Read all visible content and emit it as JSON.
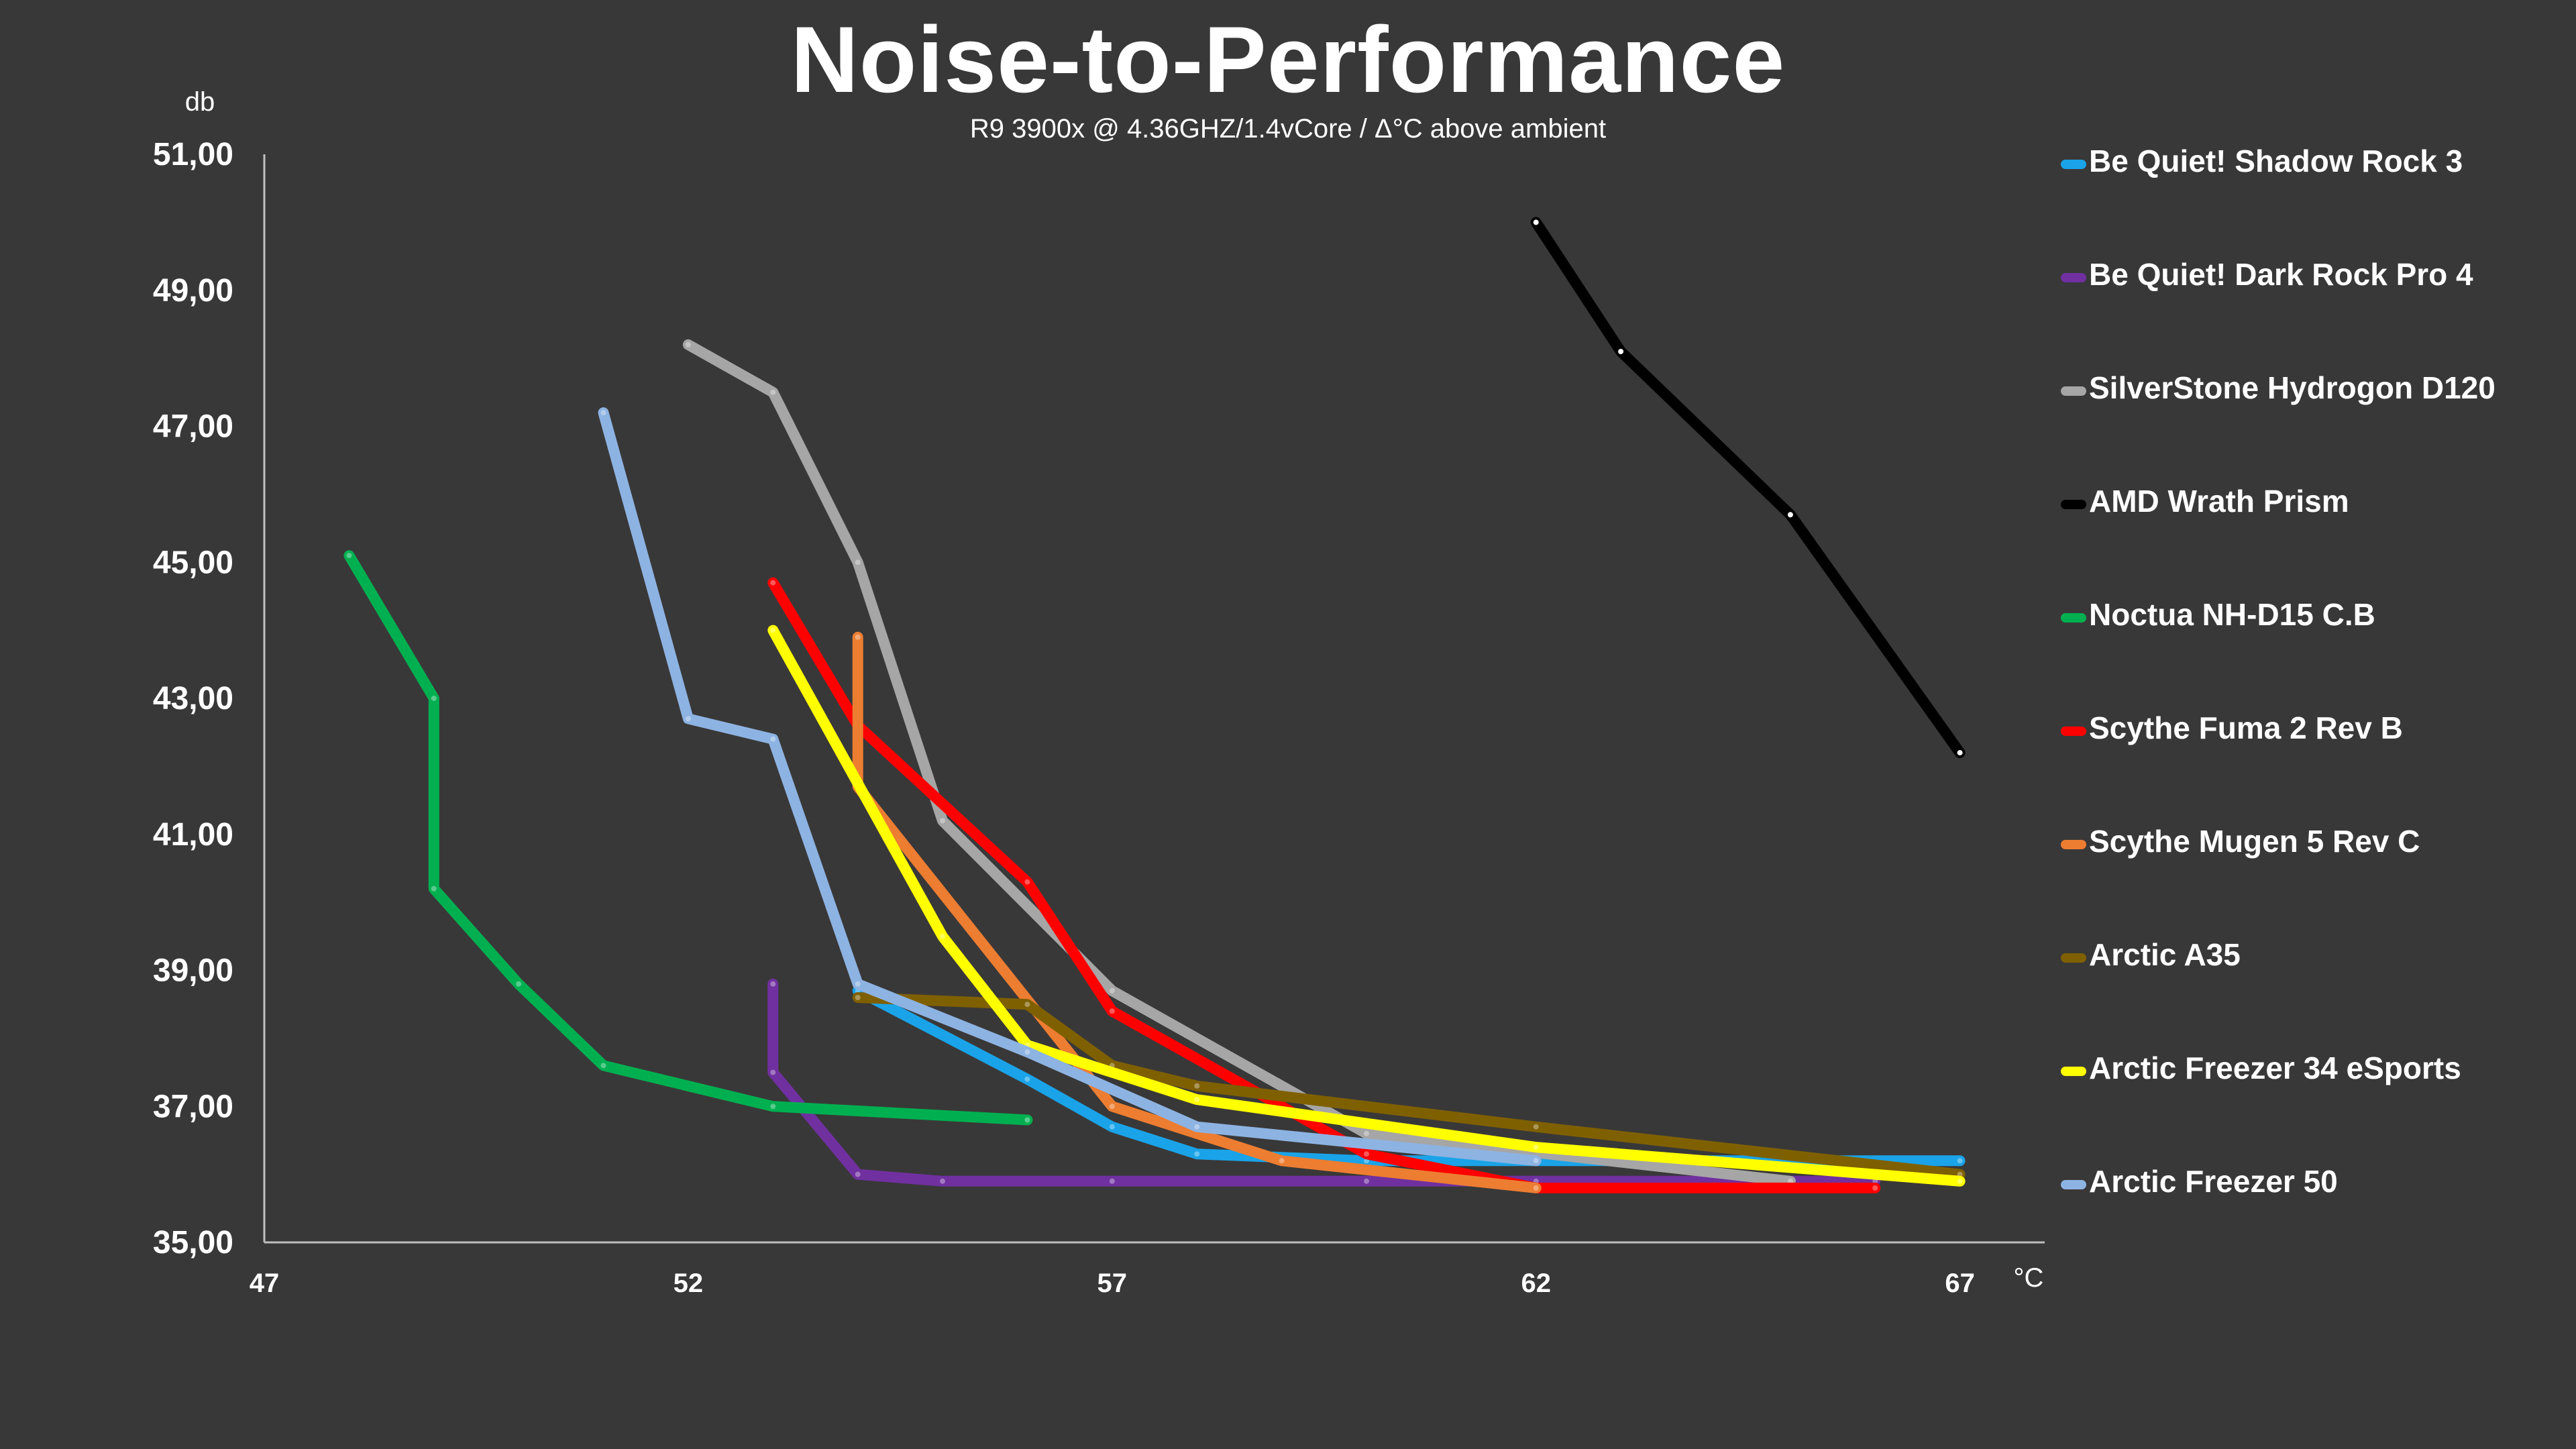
{
  "chart_data": {
    "type": "line",
    "title": "Noise-to-Performance",
    "subtitle": "R9 3900x @ 4.36GHZ/1.4vCore   /  Δ°C above ambient",
    "xlabel": "°C",
    "ylabel": "db",
    "xlim": [
      47,
      68
    ],
    "ylim": [
      35,
      51
    ],
    "xticks": [
      "47",
      "52",
      "57",
      "62",
      "67"
    ],
    "xtick_values": [
      47,
      52,
      57,
      62,
      67
    ],
    "yticks": [
      "35,00",
      "37,00",
      "39,00",
      "41,00",
      "43,00",
      "45,00",
      "47,00",
      "49,00",
      "51,00"
    ],
    "ytick_values": [
      35,
      37,
      39,
      41,
      43,
      45,
      47,
      49,
      51
    ],
    "grid": false,
    "legend_position": "right",
    "series": [
      {
        "name": "Be Quiet! Shadow Rock 3",
        "color": "#1aa3e8",
        "x": [
          54,
          56,
          57,
          58,
          60,
          62,
          67
        ],
        "y": [
          38.7,
          37.4,
          36.7,
          36.3,
          36.2,
          36.2,
          36.2
        ]
      },
      {
        "name": "Be Quiet! Dark Rock Pro 4",
        "color": "#7030a0",
        "x": [
          53,
          53,
          54,
          55,
          57,
          60,
          62,
          66
        ],
        "y": [
          38.8,
          37.5,
          36.0,
          35.9,
          35.9,
          35.9,
          35.9,
          35.9
        ]
      },
      {
        "name": "SilverStone Hydrogon D120",
        "color": "#a6a6a6",
        "x": [
          52,
          53,
          54,
          55,
          57,
          60,
          65
        ],
        "y": [
          48.2,
          47.5,
          45.0,
          41.2,
          38.7,
          36.6,
          35.9
        ]
      },
      {
        "name": "AMD Wrath Prism",
        "color": "#000000",
        "x": [
          62,
          63,
          65,
          67
        ],
        "y": [
          50.0,
          48.1,
          45.7,
          42.2
        ]
      },
      {
        "name": "Noctua NH-D15 C.B",
        "color": "#00b050",
        "x": [
          48,
          49,
          49,
          50,
          51,
          53,
          56
        ],
        "y": [
          45.1,
          43.0,
          40.2,
          38.8,
          37.6,
          37.0,
          36.8
        ]
      },
      {
        "name": "Scythe Fuma 2 Rev B",
        "color": "#ff0000",
        "x": [
          53,
          54,
          56,
          57,
          60,
          62,
          66
        ],
        "y": [
          44.7,
          42.6,
          40.3,
          38.4,
          36.3,
          35.8,
          35.8
        ]
      },
      {
        "name": "Scythe Mugen 5 Rev C",
        "color": "#ed7d31",
        "x": [
          54,
          54,
          57,
          59,
          62
        ],
        "y": [
          43.9,
          41.7,
          37.0,
          36.2,
          35.8
        ]
      },
      {
        "name": "Arctic A35",
        "color": "#7f6000",
        "x": [
          54,
          56,
          57,
          58,
          62,
          67
        ],
        "y": [
          38.6,
          38.5,
          37.6,
          37.3,
          36.7,
          36.0
        ]
      },
      {
        "name": "Arctic Freezer 34 eSports",
        "color": "#ffff00",
        "x": [
          53,
          55,
          56,
          58,
          62,
          67
        ],
        "y": [
          44.0,
          39.5,
          37.9,
          37.1,
          36.4,
          35.9
        ]
      },
      {
        "name": "Arctic Freezer 50",
        "color": "#8db3e2",
        "x": [
          51,
          52,
          53,
          54,
          56,
          58,
          62
        ],
        "y": [
          47.2,
          42.7,
          42.4,
          38.8,
          37.8,
          36.7,
          36.2
        ]
      }
    ]
  }
}
